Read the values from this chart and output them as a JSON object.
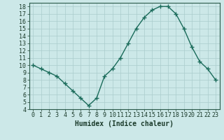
{
  "x": [
    0,
    1,
    2,
    3,
    4,
    5,
    6,
    7,
    8,
    9,
    10,
    11,
    12,
    13,
    14,
    15,
    16,
    17,
    18,
    19,
    20,
    21,
    22,
    23
  ],
  "y": [
    10,
    9.5,
    9,
    8.5,
    7.5,
    6.5,
    5.5,
    4.5,
    5.5,
    8.5,
    9.5,
    11,
    13,
    15,
    16.5,
    17.5,
    18,
    18,
    17,
    15,
    12.5,
    10.5,
    9.5,
    8
  ],
  "line_color": "#1a6b5a",
  "marker": "+",
  "marker_size": 4,
  "linewidth": 1.0,
  "markeredgewidth": 1.0,
  "xlabel": "Humidex (Indice chaleur)",
  "xlabel_fontsize": 7,
  "xlabel_color": "#1a3a2a",
  "background_color": "#cce8e8",
  "grid_color": "#aacccc",
  "tick_label_fontsize": 6,
  "tick_label_color": "#1a3a2a",
  "ylim": [
    4,
    18.5
  ],
  "xlim": [
    -0.5,
    23.5
  ],
  "yticks": [
    4,
    5,
    6,
    7,
    8,
    9,
    10,
    11,
    12,
    13,
    14,
    15,
    16,
    17,
    18
  ],
  "xticks": [
    0,
    1,
    2,
    3,
    4,
    5,
    6,
    7,
    8,
    9,
    10,
    11,
    12,
    13,
    14,
    15,
    16,
    17,
    18,
    19,
    20,
    21,
    22,
    23
  ]
}
